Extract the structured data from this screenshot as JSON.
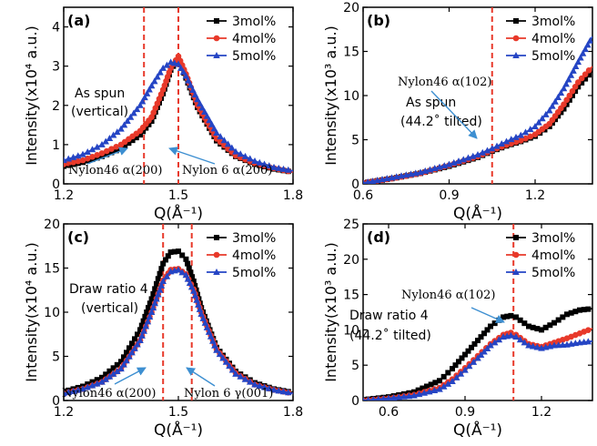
{
  "chart_data": [
    {
      "type": "line",
      "panel_label": "(a)",
      "xlabel": "Q(Å⁻¹)",
      "ylabel": "Intensity(x10⁴ a.u.)",
      "xlim": [
        1.2,
        1.8
      ],
      "ylim": [
        0,
        4.5
      ],
      "xticks": [
        "1.2",
        "1.5",
        "1.8"
      ],
      "yticks": [
        "0",
        "1",
        "2",
        "3",
        "4"
      ],
      "series": [
        {
          "name": "3mol%",
          "x": [
            1.2,
            1.25,
            1.3,
            1.35,
            1.4,
            1.43,
            1.46,
            1.48,
            1.5,
            1.52,
            1.55,
            1.6,
            1.65,
            1.7,
            1.75,
            1.8
          ],
          "y": [
            0.45,
            0.55,
            0.7,
            0.9,
            1.25,
            1.6,
            2.3,
            2.9,
            3.2,
            2.7,
            1.95,
            1.1,
            0.7,
            0.5,
            0.38,
            0.3
          ]
        },
        {
          "name": "4mol%",
          "x": [
            1.2,
            1.25,
            1.3,
            1.35,
            1.4,
            1.43,
            1.46,
            1.48,
            1.5,
            1.52,
            1.55,
            1.6,
            1.65,
            1.7,
            1.75,
            1.8
          ],
          "y": [
            0.5,
            0.6,
            0.78,
            1.0,
            1.35,
            1.7,
            2.4,
            2.95,
            3.25,
            2.8,
            2.0,
            1.15,
            0.72,
            0.52,
            0.4,
            0.3
          ]
        },
        {
          "name": "5mol%",
          "x": [
            1.2,
            1.25,
            1.3,
            1.35,
            1.4,
            1.43,
            1.46,
            1.48,
            1.5,
            1.52,
            1.55,
            1.6,
            1.65,
            1.7,
            1.75,
            1.8
          ],
          "y": [
            0.6,
            0.75,
            1.0,
            1.4,
            2.0,
            2.5,
            2.95,
            3.1,
            3.05,
            2.75,
            2.15,
            1.3,
            0.82,
            0.58,
            0.42,
            0.33
          ]
        }
      ],
      "vlines": [
        1.41,
        1.5
      ],
      "annotations": [
        "As spun",
        "(vertical)",
        "Nylon46 α(200)",
        "Nylon 6 α(200)"
      ],
      "legend": "top-right"
    },
    {
      "type": "line",
      "panel_label": "(b)",
      "xlabel": "Q(Å⁻¹)",
      "ylabel": "Intensity(x10³ a.u.)",
      "xlim": [
        0.6,
        1.4
      ],
      "ylim": [
        0,
        20
      ],
      "xticks": [
        "0.6",
        "0.9",
        "1.2"
      ],
      "yticks": [
        "0",
        "5",
        "10",
        "15",
        "20"
      ],
      "series": [
        {
          "name": "3mol%",
          "x": [
            0.6,
            0.7,
            0.8,
            0.9,
            1.0,
            1.05,
            1.1,
            1.15,
            1.2,
            1.25,
            1.3,
            1.35,
            1.4
          ],
          "y": [
            0.1,
            0.6,
            1.2,
            2.0,
            3.0,
            3.7,
            4.3,
            4.8,
            5.4,
            6.5,
            8.5,
            11,
            12.8
          ]
        },
        {
          "name": "4mol%",
          "x": [
            0.6,
            0.7,
            0.8,
            0.9,
            1.0,
            1.05,
            1.1,
            1.15,
            1.2,
            1.25,
            1.3,
            1.35,
            1.4
          ],
          "y": [
            0.1,
            0.6,
            1.2,
            2.1,
            3.1,
            3.8,
            4.4,
            4.9,
            5.6,
            6.8,
            9.0,
            11.5,
            13.3
          ]
        },
        {
          "name": "5mol%",
          "x": [
            0.6,
            0.7,
            0.8,
            0.9,
            1.0,
            1.05,
            1.1,
            1.15,
            1.2,
            1.25,
            1.3,
            1.35,
            1.4
          ],
          "y": [
            0.1,
            0.7,
            1.3,
            2.2,
            3.3,
            4.0,
            4.8,
            5.5,
            6.5,
            8.3,
            10.8,
            13.8,
            16.7
          ]
        }
      ],
      "vlines": [
        1.05
      ],
      "annotations": [
        "Nylon46 α(102)",
        "As spun",
        "(44.2˚ tilted)"
      ],
      "legend": "top-right"
    },
    {
      "type": "line",
      "panel_label": "(c)",
      "xlabel": "Q(Å⁻¹)",
      "ylabel": "Intensity(x10⁴ a.u.)",
      "xlim": [
        1.2,
        1.8
      ],
      "ylim": [
        0,
        20
      ],
      "xticks": [
        "1.2",
        "1.5",
        "1.8"
      ],
      "yticks": [
        "0",
        "5",
        "10",
        "15",
        "20"
      ],
      "series": [
        {
          "name": "3mol%",
          "x": [
            1.2,
            1.25,
            1.3,
            1.35,
            1.4,
            1.43,
            1.46,
            1.48,
            1.5,
            1.52,
            1.54,
            1.56,
            1.6,
            1.65,
            1.7,
            1.75,
            1.8
          ],
          "y": [
            1.0,
            1.6,
            2.6,
            4.4,
            8.0,
            11.5,
            15.5,
            16.8,
            16.9,
            16.0,
            13.5,
            10.5,
            6.0,
            3.3,
            2.0,
            1.3,
            0.9
          ]
        },
        {
          "name": "4mol%",
          "x": [
            1.2,
            1.25,
            1.3,
            1.35,
            1.4,
            1.43,
            1.46,
            1.48,
            1.5,
            1.52,
            1.54,
            1.56,
            1.6,
            1.65,
            1.7,
            1.75,
            1.8
          ],
          "y": [
            0.8,
            1.3,
            2.1,
            3.6,
            6.8,
            10.0,
            13.6,
            14.8,
            14.9,
            14.3,
            12.6,
            10.0,
            5.8,
            3.1,
            1.8,
            1.2,
            0.8
          ]
        },
        {
          "name": "5mol%",
          "x": [
            1.2,
            1.25,
            1.3,
            1.35,
            1.4,
            1.43,
            1.46,
            1.48,
            1.5,
            1.52,
            1.54,
            1.56,
            1.6,
            1.65,
            1.7,
            1.75,
            1.8
          ],
          "y": [
            0.8,
            1.3,
            2.1,
            3.6,
            6.8,
            10.0,
            13.5,
            14.6,
            14.8,
            14.2,
            12.4,
            9.8,
            5.7,
            3.0,
            1.8,
            1.2,
            0.8
          ]
        }
      ],
      "vlines": [
        1.46,
        1.535
      ],
      "annotations": [
        "Draw ratio 4",
        "(vertical)",
        "Nylon46 α(200)",
        "Nylon 6 γ(001)"
      ],
      "legend": "top-right"
    },
    {
      "type": "line",
      "panel_label": "(d)",
      "xlabel": "Q(Å⁻¹)",
      "ylabel": "Intensity(x10³ a.u.)",
      "xlim": [
        0.5,
        1.4
      ],
      "ylim": [
        0,
        25
      ],
      "xticks": [
        "0.6",
        "0.9",
        "1.2"
      ],
      "yticks": [
        "0",
        "5",
        "10",
        "15",
        "20",
        "25"
      ],
      "series": [
        {
          "name": "3mol%",
          "x": [
            0.5,
            0.6,
            0.7,
            0.8,
            0.85,
            0.9,
            0.95,
            1.0,
            1.05,
            1.08,
            1.1,
            1.15,
            1.2,
            1.25,
            1.3,
            1.35,
            1.4
          ],
          "y": [
            0.1,
            0.5,
            1.2,
            2.8,
            4.5,
            6.5,
            8.5,
            10.5,
            11.8,
            12.0,
            11.8,
            10.5,
            10.0,
            11.0,
            12.2,
            12.8,
            13.0
          ]
        },
        {
          "name": "4mol%",
          "x": [
            0.5,
            0.6,
            0.7,
            0.8,
            0.85,
            0.9,
            0.95,
            1.0,
            1.05,
            1.08,
            1.1,
            1.15,
            1.2,
            1.25,
            1.3,
            1.35,
            1.4
          ],
          "y": [
            0.0,
            0.3,
            0.8,
            1.8,
            3.0,
            4.6,
            6.3,
            8.0,
            9.3,
            9.6,
            9.3,
            8.0,
            7.6,
            8.2,
            8.8,
            9.5,
            10.2
          ]
        },
        {
          "name": "5mol%",
          "x": [
            0.5,
            0.6,
            0.7,
            0.8,
            0.85,
            0.9,
            0.95,
            1.0,
            1.05,
            1.08,
            1.1,
            1.15,
            1.2,
            1.25,
            1.3,
            1.35,
            1.4
          ],
          "y": [
            0.0,
            0.3,
            0.7,
            1.6,
            2.7,
            4.3,
            6.0,
            7.8,
            9.0,
            9.2,
            9.0,
            7.8,
            7.4,
            7.8,
            7.9,
            8.2,
            8.4
          ]
        }
      ],
      "vlines": [
        1.09
      ],
      "annotations": [
        "Nylon46 α(102)",
        "Draw ratio 4",
        "(44.2˚ tilted)"
      ],
      "legend": "top-right"
    }
  ],
  "style": {
    "series_colors": [
      "#000000",
      "#e8392a",
      "#2545c4"
    ],
    "series_markers": [
      "square",
      "circle",
      "triangle"
    ],
    "vline_color": "#e8392a",
    "arrow_color": "#3d8fd1"
  }
}
